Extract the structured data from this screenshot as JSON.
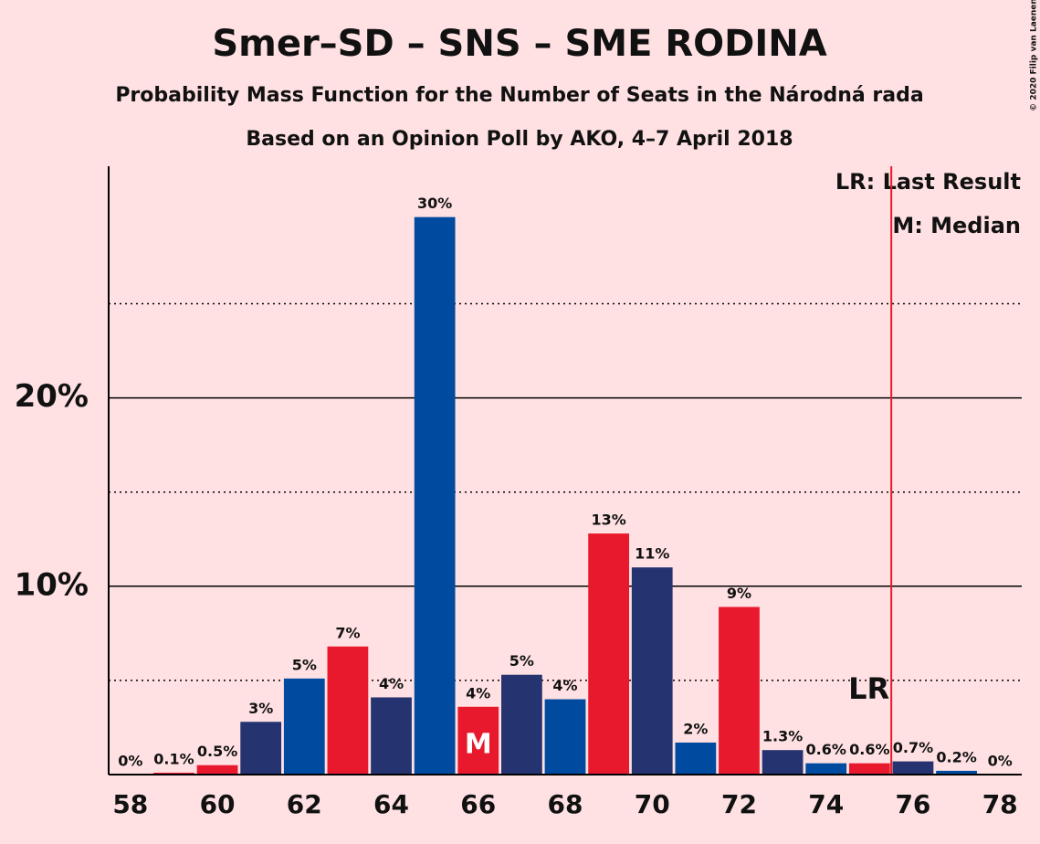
{
  "chart_data": {
    "type": "bar",
    "title": "Smer–SD – SNS – SME RODINA",
    "subtitles": [
      "Probability Mass Function for the Number of Seats in the Národná rada",
      "Based on an Opinion Poll by AKO, 4–7 April 2018"
    ],
    "credit": "© 2020 Filip van Laenen",
    "x": [
      58,
      59,
      60,
      61,
      62,
      63,
      64,
      65,
      66,
      67,
      68,
      69,
      70,
      71,
      72,
      73,
      74,
      75,
      76,
      77,
      78
    ],
    "values": [
      0,
      0.1,
      0.5,
      2.8,
      5.1,
      6.8,
      4.1,
      29.6,
      3.6,
      5.3,
      4.0,
      12.8,
      11.0,
      1.7,
      8.9,
      1.3,
      0.6,
      0.6,
      0.7,
      0.2,
      0
    ],
    "value_labels": [
      "0%",
      "0.1%",
      "0.5%",
      "3%",
      "5%",
      "7%",
      "4%",
      "30%",
      "4%",
      "5%",
      "4%",
      "13%",
      "11%",
      "2%",
      "9%",
      "1.3%",
      "0.6%",
      "0.6%",
      "0.7%",
      "0.2%",
      "0%"
    ],
    "colors": [
      "#004a9f",
      "#e8192c",
      "#e8192c",
      "#253370",
      "#004a9f",
      "#e8192c",
      "#253370",
      "#004a9f",
      "#e8192c",
      "#253370",
      "#004a9f",
      "#e8192c",
      "#253370",
      "#004a9f",
      "#e8192c",
      "#253370",
      "#004a9f",
      "#e8192c",
      "#253370",
      "#004a9f",
      "#e8192c"
    ],
    "xlim": [
      57.5,
      78.5
    ],
    "xticks": [
      58,
      60,
      62,
      64,
      66,
      68,
      70,
      72,
      74,
      76,
      78
    ],
    "ylim": [
      0,
      32.3
    ],
    "yticks": [
      {
        "value": 10,
        "label": "10%"
      },
      {
        "value": 20,
        "label": "20%"
      }
    ],
    "minor_yticks": [
      5,
      15,
      25
    ],
    "grid": true,
    "median": {
      "x": 66,
      "label": "M"
    },
    "last_result": {
      "x": 75.5,
      "label": "LR"
    },
    "legend": [
      "LR: Last Result",
      "M: Median"
    ]
  }
}
